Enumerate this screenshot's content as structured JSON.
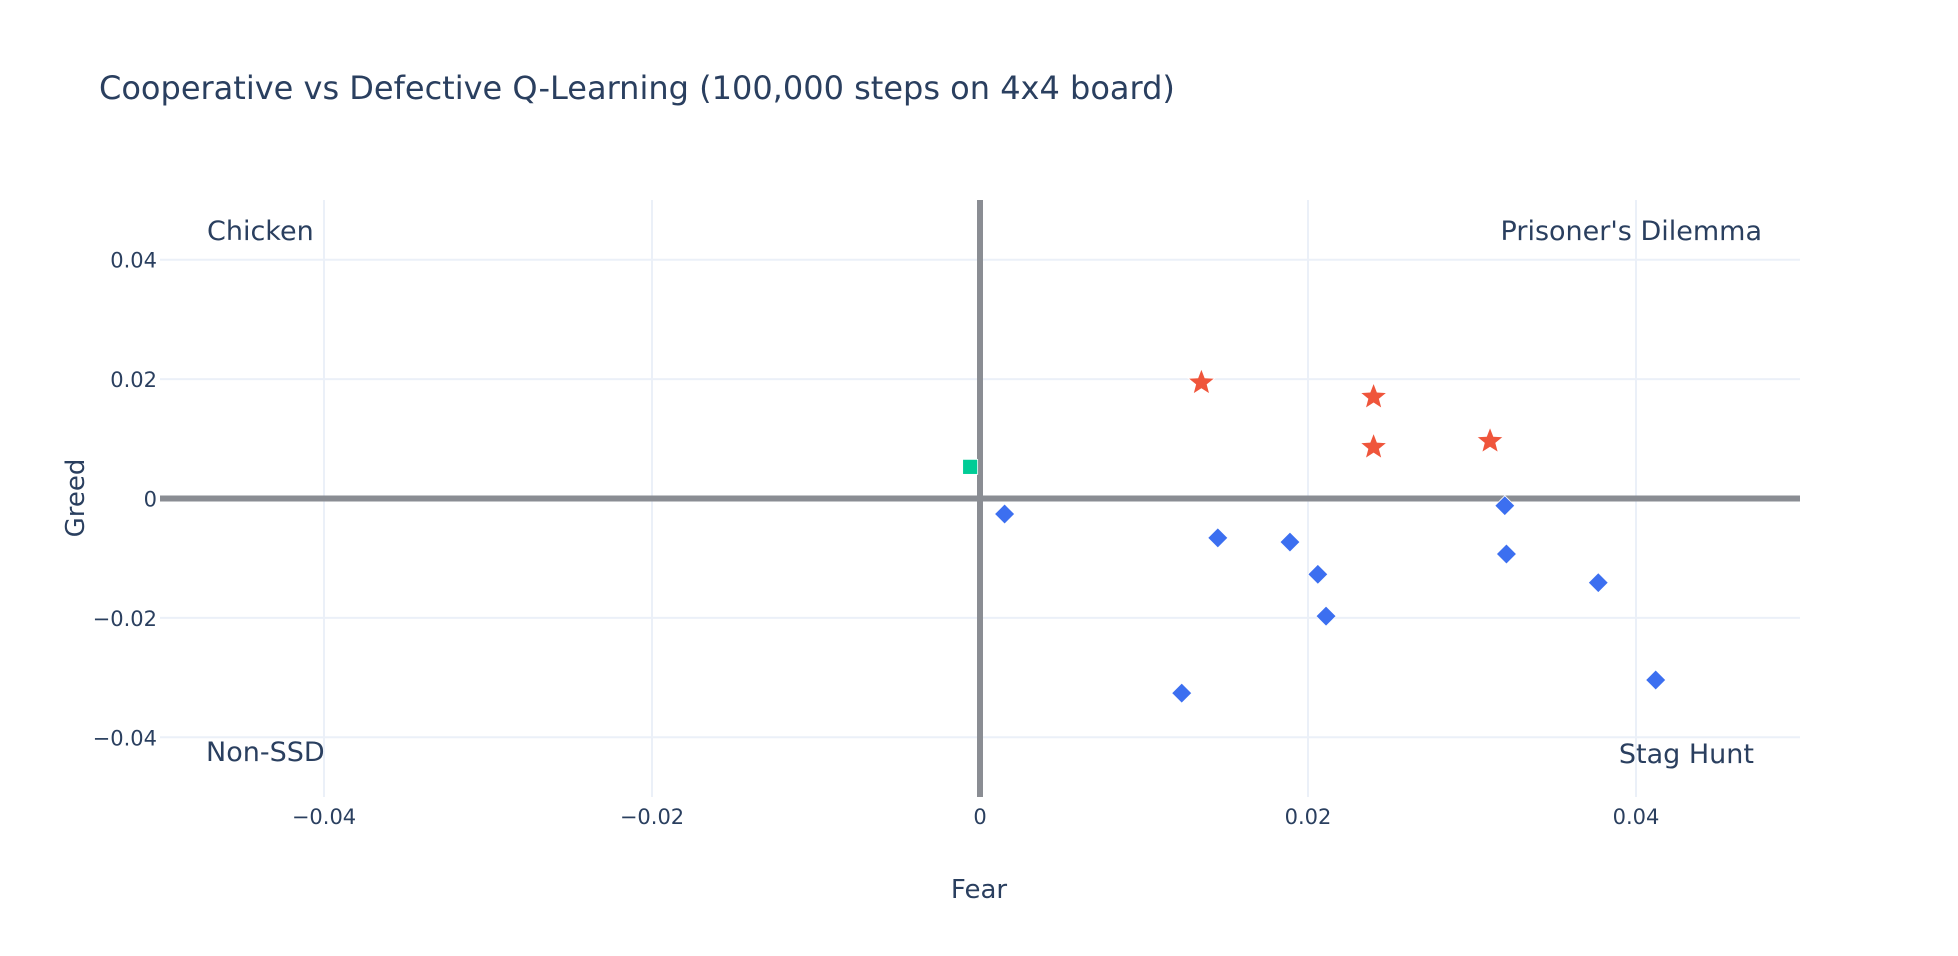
{
  "chart_data": {
    "type": "scatter",
    "title": "Cooperative vs Defective Q-Learning (100,000 steps on 4x4 board)",
    "xlabel": "Fear",
    "ylabel": "Greed",
    "xlim": [
      -0.05,
      0.05
    ],
    "ylim": [
      -0.05,
      0.05
    ],
    "x_ticks": [
      {
        "value": -0.04,
        "label": "−0.04"
      },
      {
        "value": -0.02,
        "label": "−0.02"
      },
      {
        "value": 0,
        "label": "0"
      },
      {
        "value": 0.02,
        "label": "0.02"
      },
      {
        "value": 0.04,
        "label": "0.04"
      }
    ],
    "y_ticks": [
      {
        "value": 0.04,
        "label": "0.04"
      },
      {
        "value": 0.02,
        "label": "0.02"
      },
      {
        "value": 0,
        "label": "0"
      },
      {
        "value": -0.02,
        "label": "−0.02"
      },
      {
        "value": -0.04,
        "label": "−0.04"
      }
    ],
    "grid": true,
    "legend": "none",
    "quadrant_labels": [
      {
        "text": "Chicken",
        "corner": "top-left"
      },
      {
        "text": "Prisoner's Dilemma",
        "corner": "top-right"
      },
      {
        "text": "Non-SSD",
        "corner": "bottom-left"
      },
      {
        "text": "Stag Hunt",
        "corner": "bottom-right"
      }
    ],
    "series": [
      {
        "marker": "star",
        "color": "#ef553b",
        "points": [
          {
            "x": 0.0135,
            "y": 0.0194
          },
          {
            "x": 0.024,
            "y": 0.017
          },
          {
            "x": 0.024,
            "y": 0.0086
          },
          {
            "x": 0.0311,
            "y": 0.0096
          }
        ]
      },
      {
        "marker": "diamond",
        "color": "#3c6ff0",
        "points": [
          {
            "x": 0.0015,
            "y": -0.0026
          },
          {
            "x": 0.0145,
            "y": -0.0066
          },
          {
            "x": 0.0189,
            "y": -0.0073
          },
          {
            "x": 0.0206,
            "y": -0.0127
          },
          {
            "x": 0.0211,
            "y": -0.0197
          },
          {
            "x": 0.0123,
            "y": -0.0326
          },
          {
            "x": 0.032,
            "y": -0.0012
          },
          {
            "x": 0.0321,
            "y": -0.0093
          },
          {
            "x": 0.0377,
            "y": -0.0141
          },
          {
            "x": 0.0412,
            "y": -0.0304
          }
        ]
      },
      {
        "marker": "square",
        "color": "#00cc96",
        "points": [
          {
            "x": -0.0006,
            "y": 0.0053
          }
        ]
      }
    ]
  }
}
